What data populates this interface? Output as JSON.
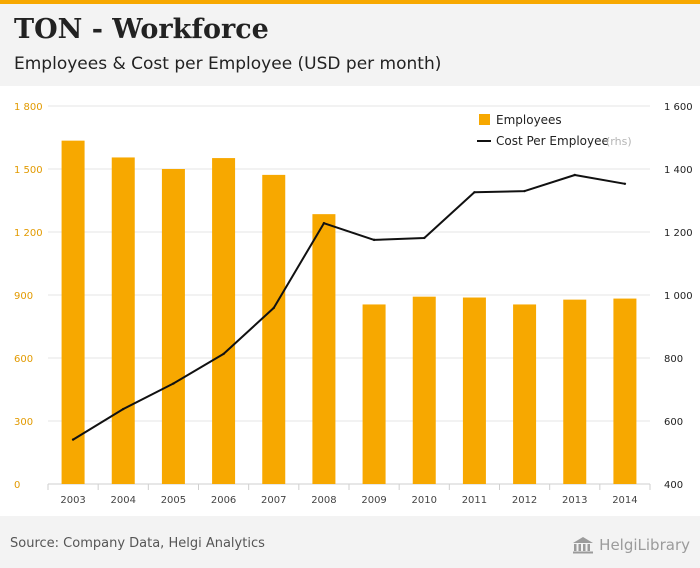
{
  "header": {
    "title": "TON - Workforce",
    "subtitle": "Employees & Cost per Employee (USD per month)"
  },
  "footer": {
    "source": "Source: Company Data, Helgi Analytics",
    "brand": "HelgiLibrary"
  },
  "colors": {
    "accent": "#f7a800",
    "line": "#111111",
    "left_tick": "#e29a00",
    "right_tick": "#222222",
    "x_tick": "#444444"
  },
  "chart_data": {
    "type": "bar",
    "title": "Employees & Cost per Employee (USD per month)",
    "categories": [
      "2003",
      "2004",
      "2005",
      "2006",
      "2007",
      "2008",
      "2009",
      "2010",
      "2011",
      "2012",
      "2013",
      "2014"
    ],
    "series": [
      {
        "name": "Employees",
        "type": "bar",
        "axis": "left",
        "values": [
          1635,
          1555,
          1500,
          1552,
          1472,
          1285,
          855,
          892,
          888,
          855,
          878,
          883
        ]
      },
      {
        "name": "Cost Per Employee",
        "type": "line",
        "axis": "right",
        "axis_note": "(rhs)",
        "values": [
          541,
          638,
          719,
          813,
          959,
          1228,
          1175,
          1181,
          1326,
          1330,
          1381,
          1353
        ]
      }
    ],
    "y_left": {
      "ylim": [
        0,
        1800
      ],
      "ticks": [
        0,
        300,
        600,
        900,
        1200,
        1500,
        1800
      ],
      "tick_labels": [
        "0",
        "300",
        "600",
        "900",
        "1 200",
        "1 500",
        "1 800"
      ]
    },
    "y_right": {
      "ylim": [
        400,
        1600
      ],
      "ticks": [
        400,
        600,
        800,
        1000,
        1200,
        1400,
        1600
      ],
      "tick_labels": [
        "400",
        "600",
        "800",
        "1 000",
        "1 200",
        "1 400",
        "1 600"
      ]
    },
    "legend": {
      "position": "top-right"
    },
    "grid": true
  }
}
